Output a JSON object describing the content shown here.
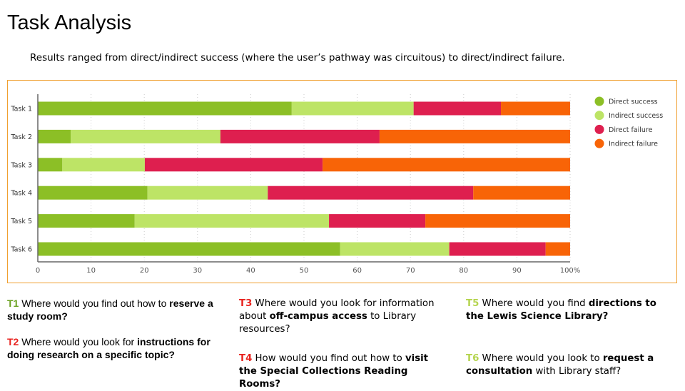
{
  "title": "Task Analysis",
  "subtitle": "Results ranged from direct/indirect success (where the user’s pathway was circuitous) to direct/indirect failure.",
  "chart_data": {
    "type": "bar",
    "orientation": "horizontal",
    "stacked": true,
    "categories": [
      "Task 1",
      "Task 2",
      "Task 3",
      "Task 4",
      "Task 5",
      "Task 6"
    ],
    "series": [
      {
        "name": "Direct success",
        "color": "#8cbf26",
        "values": [
          47.7,
          6.2,
          4.6,
          20.6,
          18.2,
          56.8
        ]
      },
      {
        "name": "Indirect success",
        "color": "#bde466",
        "values": [
          22.9,
          28.1,
          15.5,
          22.6,
          36.5,
          20.5
        ]
      },
      {
        "name": "Direct failure",
        "color": "#de1f4f",
        "values": [
          16.4,
          29.9,
          33.4,
          38.6,
          18.1,
          18.1
        ]
      },
      {
        "name": "Indirect failure",
        "color": "#f86407",
        "values": [
          13.0,
          35.8,
          46.5,
          18.2,
          27.2,
          4.6
        ]
      }
    ],
    "xlim": [
      0,
      100
    ],
    "xticks": [
      "0",
      "10",
      "20",
      "30",
      "40",
      "50",
      "60",
      "70",
      "80",
      "90",
      "100%"
    ],
    "grid": true,
    "legend": "right"
  },
  "questions": [
    {
      "id": "T1",
      "color": "#6aa121",
      "parts": [
        {
          "t": " Where would you find out how to "
        },
        {
          "t": "reserve a study room?",
          "b": true
        }
      ]
    },
    {
      "id": "T2",
      "color": "#e8231f",
      "parts": [
        {
          "t": " Where would you look for "
        },
        {
          "t": "instructions for doing research on a specific topic?",
          "b": true
        }
      ]
    },
    {
      "id": "T3",
      "color": "#e8231f",
      "parts": [
        {
          "t": " Where would you look for information about "
        },
        {
          "t": "off-campus access",
          "b": true
        },
        {
          "t": " to Library resources?"
        }
      ]
    },
    {
      "id": "T4",
      "color": "#e8231f",
      "parts": [
        {
          "t": " How would you find out how to "
        },
        {
          "t": "visit the Special Collections Reading Rooms?",
          "b": true
        }
      ]
    },
    {
      "id": "T5",
      "color": "#b5d44f",
      "parts": [
        {
          "t": " Where would you find "
        },
        {
          "t": "directions to the Lewis Science Library?",
          "b": true
        }
      ]
    },
    {
      "id": "T6",
      "color": "#b5d44f",
      "parts": [
        {
          "t": " Where would you look to "
        },
        {
          "t": "request a consultation",
          "b": true
        },
        {
          "t": " with Library staff?"
        }
      ]
    }
  ]
}
